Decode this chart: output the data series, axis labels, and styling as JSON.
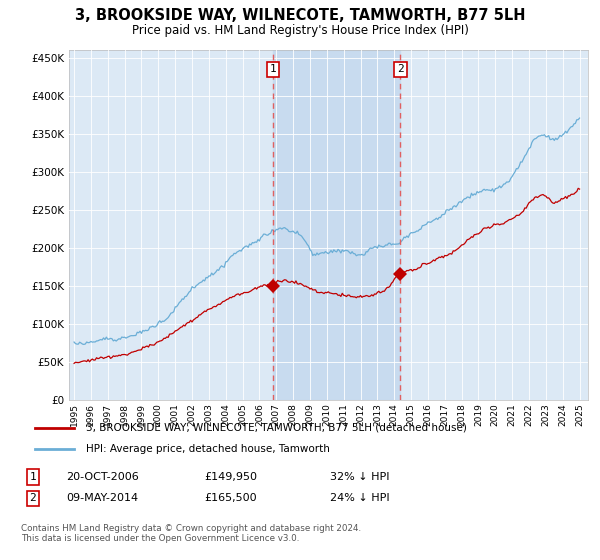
{
  "title": "3, BROOKSIDE WAY, WILNECOTE, TAMWORTH, B77 5LH",
  "subtitle": "Price paid vs. HM Land Registry's House Price Index (HPI)",
  "legend_line1": "3, BROOKSIDE WAY, WILNECOTE, TAMWORTH, B77 5LH (detached house)",
  "legend_line2": "HPI: Average price, detached house, Tamworth",
  "annotation1_label": "1",
  "annotation1_date": "20-OCT-2006",
  "annotation1_price": "£149,950",
  "annotation1_pct": "32% ↓ HPI",
  "annotation2_label": "2",
  "annotation2_date": "09-MAY-2014",
  "annotation2_price": "£165,500",
  "annotation2_pct": "24% ↓ HPI",
  "footnote": "Contains HM Land Registry data © Crown copyright and database right 2024.\nThis data is licensed under the Open Government Licence v3.0.",
  "hpi_color": "#6baed6",
  "price_color": "#c00000",
  "vline_color": "#e06060",
  "annotation_box_color": "#cc0000",
  "background_fill": "#dce9f5",
  "shade_color": "#c5d9ee",
  "ylim": [
    0,
    460000
  ],
  "yticks": [
    0,
    50000,
    100000,
    150000,
    200000,
    250000,
    300000,
    350000,
    400000,
    450000
  ],
  "x_start_year": 1995,
  "x_end_year": 2025,
  "sale1_year": 2006.8,
  "sale2_year": 2014.37,
  "sale1_price": 149950,
  "sale2_price": 165500
}
